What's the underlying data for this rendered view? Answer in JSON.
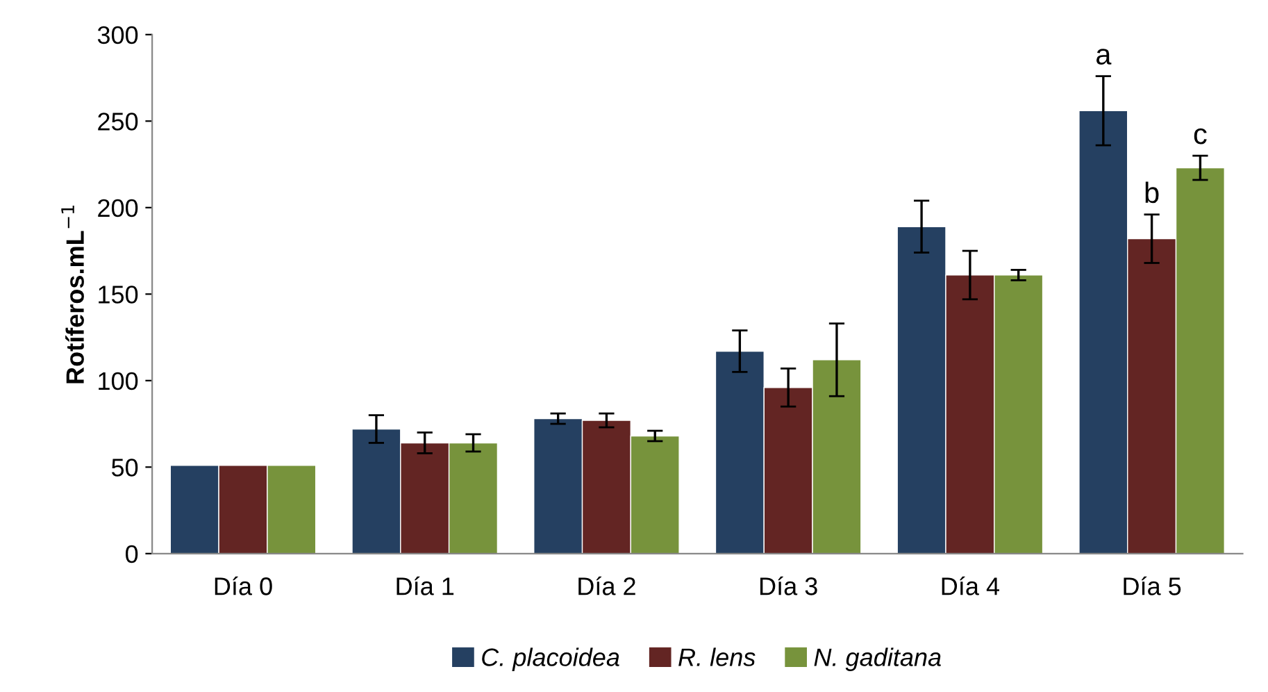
{
  "chart_data": {
    "type": "bar",
    "ylabel": "Rotíferos.mL$^{−1}$",
    "categories": [
      "Día 0",
      "Día 1",
      "Día 2",
      "Día 3",
      "Día 4",
      "Día 5"
    ],
    "series": [
      {
        "name": "C. placoidea",
        "color": "#254061",
        "values": [
          51,
          72,
          78,
          117,
          189,
          256
        ],
        "errors": [
          null,
          8,
          3,
          12,
          15,
          20
        ],
        "value_labels": [
          null,
          null,
          null,
          null,
          null,
          "a"
        ]
      },
      {
        "name": "R. lens",
        "color": "#632523",
        "values": [
          51,
          64,
          77,
          96,
          161,
          182
        ],
        "errors": [
          null,
          6,
          4,
          11,
          14,
          14
        ],
        "value_labels": [
          null,
          null,
          null,
          null,
          null,
          "b"
        ]
      },
      {
        "name": "N. gaditana",
        "color": "#77933c",
        "values": [
          51,
          64,
          68,
          112,
          161,
          223
        ],
        "errors": [
          null,
          5,
          3,
          21,
          3,
          7
        ],
        "value_labels": [
          null,
          null,
          null,
          null,
          null,
          "c"
        ]
      }
    ],
    "ylim": [
      0,
      300
    ],
    "yticks": [
      0,
      50,
      100,
      150,
      200,
      250,
      300
    ],
    "grid": false,
    "legend": "bottom"
  }
}
